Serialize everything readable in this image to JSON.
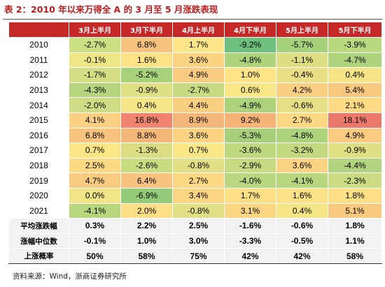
{
  "title": "表 2：2010 年以来万得全 A 的 3 月至 5 月涨跌表现",
  "columns": [
    "",
    "3月上半月",
    "3月下半月",
    "4月上半月",
    "4月下半月",
    "5月上半月",
    "5月下半月"
  ],
  "rows": [
    {
      "label": "2010",
      "values": [
        "-2.7%",
        "6.8%",
        "1.7%",
        "-9.2%",
        "-5.7%",
        "-3.9%"
      ],
      "colors": [
        "#c9df82",
        "#f6c27d",
        "#ffe58a",
        "#6cbf7c",
        "#a6d17c",
        "#b8d97e"
      ]
    },
    {
      "label": "2011",
      "values": [
        "-0.1%",
        "1.6%",
        "3.6%",
        "-4.8%",
        "-1.1%",
        "-4.7%"
      ],
      "colors": [
        "#eee686",
        "#fde187",
        "#fbd382",
        "#add37c",
        "#ddde84",
        "#aed37d"
      ]
    },
    {
      "label": "2012",
      "values": [
        "-1.7%",
        "-5.2%",
        "4.9%",
        "1.0%",
        "-0.4%",
        "0.4%"
      ],
      "colors": [
        "#d4dd84",
        "#a8d17c",
        "#f9cb80",
        "#ffe488",
        "#ead f86",
        "#f6e586"
      ]
    },
    {
      "label": "2013",
      "values": [
        "-4.3%",
        "-0.9%",
        "-2.7%",
        "0.6%",
        "4.2%",
        "5.4%"
      ],
      "colors": [
        "#b4d57e",
        "#dfdf84",
        "#c9db82",
        "#f8e687",
        "#facf81",
        "#f8c87f"
      ]
    },
    {
      "label": "2014",
      "values": [
        "-2.0%",
        "0.4%",
        "4.4%",
        "-4.9%",
        "-0.6%",
        "2.1%"
      ],
      "colors": [
        "#d0dc83",
        "#f4e586",
        "#face81",
        "#acd37c",
        "#e6df85",
        "#fddb85"
      ]
    },
    {
      "label": "2015",
      "values": [
        "4.1%",
        "16.8%",
        "8.9%",
        "9.2%",
        "2.7%",
        "18.1%"
      ],
      "colors": [
        "#fbd082",
        "#f0846e",
        "#f5b679",
        "#f5b377",
        "#fdd884",
        "#ec7a6c"
      ]
    },
    {
      "label": "2016",
      "values": [
        "6.8%",
        "8.8%",
        "3.6%",
        "-5.3%",
        "-4.8%",
        "4.9%"
      ],
      "colors": [
        "#f7c27d",
        "#f5b779",
        "#fbd382",
        "#a8d07c",
        "#add37c",
        "#f9ca80"
      ]
    },
    {
      "label": "2017",
      "values": [
        "0.7%",
        "-1.3%",
        "0.7%",
        "-3.6%",
        "-3.2%",
        "-0.9%"
      ],
      "colors": [
        "#f8e687",
        "#dadd84",
        "#f8e687",
        "#bdd87f",
        "#c2d980",
        "#dfdf84"
      ]
    },
    {
      "label": "2018",
      "values": [
        "2.5%",
        "-2.6%",
        "-0.8%",
        "-2.9%",
        "3.6%",
        "-4.4%"
      ],
      "colors": [
        "#fdd984",
        "#cadc82",
        "#e1df85",
        "#c6da81",
        "#fbd382",
        "#b2d47e"
      ]
    },
    {
      "label": "2019",
      "values": [
        "4.7%",
        "6.4%",
        "2.7%",
        "-4.0%",
        "-4.1%",
        "-2.3%"
      ],
      "colors": [
        "#f9cb80",
        "#f7c37e",
        "#fdd884",
        "#b8d77f",
        "#b7d67e",
        "#ccdc82"
      ]
    },
    {
      "label": "2020",
      "values": [
        "0.0%",
        "-6.9%",
        "3.4%",
        "1.7%",
        "1.6%",
        "1.8%"
      ],
      "colors": [
        "#f0e486",
        "#94cb7a",
        "#fcd583",
        "#fde086",
        "#fde187",
        "#fde086"
      ]
    },
    {
      "label": "2021",
      "values": [
        "-4.1%",
        "2.0%",
        "-0.8%",
        "3.1%",
        "0.4%",
        "5.1%"
      ],
      "colors": [
        "#b7d67e",
        "#fddd86",
        "#e1df85",
        "#fcd683",
        "#f6e586",
        "#f9c980"
      ]
    }
  ],
  "summary": [
    {
      "label": "平均涨跌幅",
      "values": [
        "0.3%",
        "2.2%",
        "2.5%",
        "-1.6%",
        "-0.6%",
        "1.8%"
      ]
    },
    {
      "label": "涨幅中位数",
      "values": [
        "-0.1%",
        "1.0%",
        "3.0%",
        "-3.3%",
        "-0.5%",
        "1.1%"
      ]
    },
    {
      "label": "上涨概率",
      "values": [
        "50%",
        "58%",
        "75%",
        "42%",
        "42%",
        "58%"
      ]
    }
  ],
  "summary_colors": [
    "#c9df82",
    "#fde187",
    "#fcd583",
    "#d4dd84",
    "#e6df85",
    "#fde086"
  ],
  "source": "资料来源：Wind，浙商证券研究所",
  "accent_color": "#c62828"
}
